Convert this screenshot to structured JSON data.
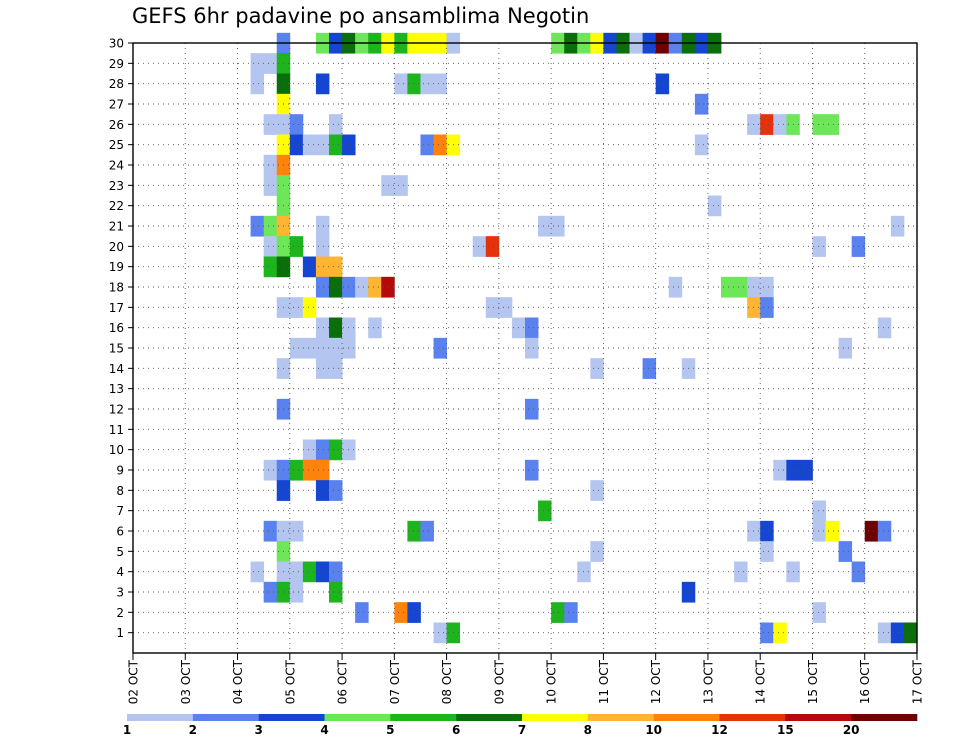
{
  "chart_data": {
    "type": "heatmap",
    "title": "GEFS 6hr padavine po ansamblima Negotin",
    "x_tick_labels": [
      "02 OCT",
      "03 OCT",
      "04 OCT",
      "05 OCT",
      "06 OCT",
      "07 OCT",
      "08 OCT",
      "09 OCT",
      "10 OCT",
      "11 OCT",
      "12 OCT",
      "13 OCT",
      "14 OCT",
      "15 OCT",
      "16 OCT",
      "17 OCT"
    ],
    "x_range_days": [
      0,
      15
    ],
    "y_tick_labels": [
      "1",
      "2",
      "3",
      "4",
      "5",
      "6",
      "7",
      "8",
      "9",
      "10",
      "11",
      "12",
      "13",
      "14",
      "15",
      "16",
      "17",
      "18",
      "19",
      "20",
      "21",
      "22",
      "23",
      "24",
      "25",
      "26",
      "27",
      "28",
      "29",
      "30"
    ],
    "y_range": [
      0,
      30
    ],
    "grid": true,
    "colorbar": {
      "position": "bottom",
      "labels": [
        "1",
        "2",
        "3",
        "4",
        "5",
        "6",
        "7",
        "8",
        "10",
        "12",
        "15",
        "20"
      ],
      "colors": [
        "#b4c6ef",
        "#5a82ee",
        "#1446d2",
        "#6ee65a",
        "#1eb41e",
        "#0a6e0a",
        "#ffff00",
        "#ffb432",
        "#ff820a",
        "#e6320a",
        "#b40a0a",
        "#6e0000"
      ]
    },
    "cells_note": "each cell: [time step index (6h steps from 02 OCT 00Z), member, color class 0-11]",
    "cells": [
      [
        11,
        30,
        1
      ],
      [
        14,
        30,
        3
      ],
      [
        15,
        30,
        2
      ],
      [
        16,
        30,
        5
      ],
      [
        17,
        30,
        3
      ],
      [
        18,
        30,
        4
      ],
      [
        19,
        30,
        6
      ],
      [
        20,
        30,
        4
      ],
      [
        21,
        30,
        6
      ],
      [
        22,
        30,
        6
      ],
      [
        23,
        30,
        6
      ],
      [
        24,
        30,
        0
      ],
      [
        32,
        30,
        3
      ],
      [
        33,
        30,
        5
      ],
      [
        34,
        30,
        3
      ],
      [
        35,
        30,
        6
      ],
      [
        36,
        30,
        2
      ],
      [
        37,
        30,
        5
      ],
      [
        38,
        30,
        0
      ],
      [
        39,
        30,
        2
      ],
      [
        40,
        30,
        11
      ],
      [
        41,
        30,
        1
      ],
      [
        42,
        30,
        5
      ],
      [
        43,
        30,
        2
      ],
      [
        44,
        30,
        5
      ],
      [
        9,
        29,
        0
      ],
      [
        10,
        29,
        0
      ],
      [
        11,
        29,
        4
      ],
      [
        9,
        28,
        0
      ],
      [
        11,
        28,
        5
      ],
      [
        14,
        28,
        2
      ],
      [
        20,
        28,
        0
      ],
      [
        21,
        28,
        4
      ],
      [
        22,
        28,
        0
      ],
      [
        23,
        28,
        0
      ],
      [
        40,
        28,
        2
      ],
      [
        11,
        27,
        6
      ],
      [
        43,
        27,
        1
      ],
      [
        10,
        26,
        0
      ],
      [
        11,
        26,
        0
      ],
      [
        12,
        26,
        1
      ],
      [
        15,
        26,
        0
      ],
      [
        47,
        26,
        0
      ],
      [
        48,
        26,
        9
      ],
      [
        49,
        26,
        0
      ],
      [
        50,
        26,
        3
      ],
      [
        52,
        26,
        3
      ],
      [
        53,
        26,
        3
      ],
      [
        11,
        25,
        6
      ],
      [
        12,
        25,
        2
      ],
      [
        13,
        25,
        0
      ],
      [
        14,
        25,
        0
      ],
      [
        15,
        25,
        4
      ],
      [
        16,
        25,
        2
      ],
      [
        22,
        25,
        1
      ],
      [
        23,
        25,
        8
      ],
      [
        24,
        25,
        6
      ],
      [
        43,
        25,
        0
      ],
      [
        10,
        24,
        0
      ],
      [
        11,
        24,
        8
      ],
      [
        10,
        23,
        0
      ],
      [
        11,
        23,
        3
      ],
      [
        19,
        23,
        0
      ],
      [
        20,
        23,
        0
      ],
      [
        11,
        22,
        3
      ],
      [
        44,
        22,
        0
      ],
      [
        9,
        21,
        1
      ],
      [
        10,
        21,
        3
      ],
      [
        11,
        21,
        7
      ],
      [
        14,
        21,
        0
      ],
      [
        31,
        21,
        0
      ],
      [
        32,
        21,
        0
      ],
      [
        58,
        21,
        0
      ],
      [
        10,
        20,
        0
      ],
      [
        11,
        20,
        3
      ],
      [
        12,
        20,
        4
      ],
      [
        14,
        20,
        0
      ],
      [
        26,
        20,
        0
      ],
      [
        27,
        20,
        9
      ],
      [
        52,
        20,
        0
      ],
      [
        55,
        20,
        1
      ],
      [
        10,
        19,
        4
      ],
      [
        11,
        19,
        5
      ],
      [
        13,
        19,
        2
      ],
      [
        14,
        19,
        7
      ],
      [
        15,
        19,
        7
      ],
      [
        14,
        18,
        1
      ],
      [
        15,
        18,
        5
      ],
      [
        16,
        18,
        1
      ],
      [
        17,
        18,
        0
      ],
      [
        18,
        18,
        7
      ],
      [
        19,
        18,
        10
      ],
      [
        41,
        18,
        0
      ],
      [
        45,
        18,
        3
      ],
      [
        46,
        18,
        3
      ],
      [
        47,
        18,
        0
      ],
      [
        48,
        18,
        0
      ],
      [
        11,
        17,
        0
      ],
      [
        12,
        17,
        0
      ],
      [
        13,
        17,
        6
      ],
      [
        27,
        17,
        0
      ],
      [
        28,
        17,
        0
      ],
      [
        47,
        17,
        7
      ],
      [
        48,
        17,
        1
      ],
      [
        14,
        16,
        0
      ],
      [
        15,
        16,
        5
      ],
      [
        16,
        16,
        0
      ],
      [
        18,
        16,
        0
      ],
      [
        29,
        16,
        0
      ],
      [
        30,
        16,
        1
      ],
      [
        57,
        16,
        0
      ],
      [
        12,
        15,
        0
      ],
      [
        13,
        15,
        0
      ],
      [
        14,
        15,
        0
      ],
      [
        15,
        15,
        0
      ],
      [
        16,
        15,
        0
      ],
      [
        23,
        15,
        1
      ],
      [
        30,
        15,
        0
      ],
      [
        54,
        15,
        0
      ],
      [
        11,
        14,
        0
      ],
      [
        14,
        14,
        0
      ],
      [
        15,
        14,
        0
      ],
      [
        35,
        14,
        0
      ],
      [
        39,
        14,
        1
      ],
      [
        42,
        14,
        0
      ],
      [
        11,
        12,
        1
      ],
      [
        30,
        12,
        1
      ],
      [
        13,
        10,
        0
      ],
      [
        14,
        10,
        1
      ],
      [
        15,
        10,
        4
      ],
      [
        16,
        10,
        0
      ],
      [
        10,
        9,
        0
      ],
      [
        11,
        9,
        1
      ],
      [
        12,
        9,
        4
      ],
      [
        13,
        9,
        8
      ],
      [
        14,
        9,
        8
      ],
      [
        30,
        9,
        1
      ],
      [
        49,
        9,
        0
      ],
      [
        50,
        9,
        2
      ],
      [
        51,
        9,
        2
      ],
      [
        11,
        8,
        2
      ],
      [
        14,
        8,
        2
      ],
      [
        15,
        8,
        1
      ],
      [
        35,
        8,
        0
      ],
      [
        31,
        7,
        4
      ],
      [
        52,
        7,
        0
      ],
      [
        10,
        6,
        1
      ],
      [
        11,
        6,
        0
      ],
      [
        12,
        6,
        0
      ],
      [
        21,
        6,
        4
      ],
      [
        22,
        6,
        1
      ],
      [
        47,
        6,
        0
      ],
      [
        48,
        6,
        2
      ],
      [
        52,
        6,
        0
      ],
      [
        53,
        6,
        6
      ],
      [
        56,
        6,
        11
      ],
      [
        57,
        6,
        1
      ],
      [
        11,
        5,
        3
      ],
      [
        35,
        5,
        0
      ],
      [
        48,
        5,
        0
      ],
      [
        54,
        5,
        1
      ],
      [
        9,
        4,
        0
      ],
      [
        11,
        4,
        0
      ],
      [
        12,
        4,
        0
      ],
      [
        13,
        4,
        4
      ],
      [
        14,
        4,
        2
      ],
      [
        15,
        4,
        1
      ],
      [
        34,
        4,
        0
      ],
      [
        46,
        4,
        0
      ],
      [
        50,
        4,
        0
      ],
      [
        55,
        4,
        1
      ],
      [
        10,
        3,
        1
      ],
      [
        11,
        3,
        4
      ],
      [
        12,
        3,
        0
      ],
      [
        15,
        3,
        4
      ],
      [
        42,
        3,
        2
      ],
      [
        17,
        2,
        1
      ],
      [
        20,
        2,
        8
      ],
      [
        21,
        2,
        2
      ],
      [
        32,
        2,
        4
      ],
      [
        33,
        2,
        1
      ],
      [
        52,
        2,
        0
      ],
      [
        23,
        1,
        0
      ],
      [
        24,
        1,
        4
      ],
      [
        48,
        1,
        1
      ],
      [
        49,
        1,
        6
      ],
      [
        57,
        1,
        0
      ],
      [
        58,
        1,
        2
      ],
      [
        59,
        1,
        5
      ]
    ]
  }
}
